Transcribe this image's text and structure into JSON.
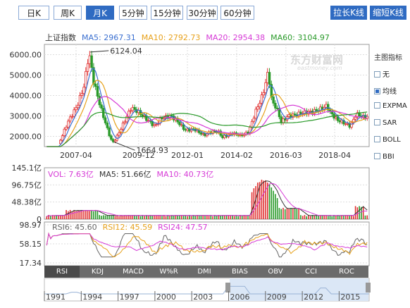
{
  "tabs": [
    {
      "label": "日K",
      "active": false
    },
    {
      "label": "周K",
      "active": false
    },
    {
      "label": "月K",
      "active": true
    },
    {
      "label": "5分钟",
      "active": false
    },
    {
      "label": "15分钟",
      "active": false
    },
    {
      "label": "30分钟",
      "active": false
    },
    {
      "label": "60分钟",
      "active": false
    }
  ],
  "buttons": {
    "stretch": "拉长K线",
    "shrink": "缩短K线"
  },
  "price_legend": {
    "name": "上证指数",
    "ma5": "MA5: 2967.31",
    "ma10": "MA10: 2792.73",
    "ma20": "MA20: 2954.38",
    "ma60": "MA60: 3104.97"
  },
  "volume_legend": {
    "vol": "VOL: 7.63亿",
    "ma5": "MA5: 51.66亿",
    "ma10": "MA10: 40.73亿"
  },
  "rsi_legend": {
    "rsi6": "RSI6: 45.60",
    "rsi12": "RSI12: 45.59",
    "rsi24": "RSI24: 47.57"
  },
  "indicator_panel": {
    "title": "主图指标",
    "options": [
      {
        "label": "无",
        "checked": false
      },
      {
        "label": "均线",
        "checked": true
      },
      {
        "label": "EXPMA",
        "checked": false
      },
      {
        "label": "SAR",
        "checked": false
      },
      {
        "label": "BOLL",
        "checked": false
      },
      {
        "label": "BBI",
        "checked": false
      }
    ]
  },
  "indicator_tabs": [
    "RSI",
    "KDJ",
    "MACD",
    "W%R",
    "DMI",
    "BIAS",
    "OBV",
    "CCI",
    "ROC"
  ],
  "active_indicator": "RSI",
  "navigator_years": [
    "1991",
    "1994",
    "1997",
    "2000",
    "2003",
    "2006",
    "2009",
    "2012",
    "2015"
  ],
  "watermark": {
    "cn": "东方财富网",
    "en": "eastmoney.com"
  },
  "colors": {
    "up": "#e03030",
    "down": "#2a9a2a",
    "ma5": "#3a6fd0",
    "ma10": "#e7a11b",
    "ma20": "#d63ad6",
    "ma60": "#2a9a2a",
    "accent": "#2f6bc2"
  },
  "chart_data": [
    {
      "type": "candlestick",
      "title": "上证指数",
      "x_ticks": [
        "2007-04",
        "2009-12",
        "2012-01",
        "2014-02",
        "2016-03",
        "2018-04"
      ],
      "y_ticks": [
        2000,
        3000,
        4000,
        5000,
        6000
      ],
      "ylim": [
        1500,
        6500
      ],
      "annotations": [
        {
          "label": "6124.04",
          "x": "2007-10",
          "y": 6124.04
        },
        {
          "label": "1664.93",
          "x": "2008-10",
          "y": 1664.93
        }
      ],
      "grid": true,
      "series": [
        {
          "name": "MA5",
          "value": 2967.31
        },
        {
          "name": "MA10",
          "value": 2792.73
        },
        {
          "name": "MA20",
          "value": 2954.38
        },
        {
          "name": "MA60",
          "value": 3104.97
        }
      ],
      "close_path": [
        [
          2006.0,
          1300
        ],
        [
          2006.5,
          1600
        ],
        [
          2006.9,
          2700
        ],
        [
          2007.3,
          3500
        ],
        [
          2007.6,
          4500
        ],
        [
          2007.8,
          6124.04
        ],
        [
          2008.0,
          4700
        ],
        [
          2008.3,
          3400
        ],
        [
          2008.6,
          2300
        ],
        [
          2008.8,
          1664.93
        ],
        [
          2009.0,
          2000
        ],
        [
          2009.3,
          2700
        ],
        [
          2009.6,
          3400
        ],
        [
          2009.9,
          3200
        ],
        [
          2010.3,
          2800
        ],
        [
          2010.6,
          2500
        ],
        [
          2010.9,
          2900
        ],
        [
          2011.3,
          3000
        ],
        [
          2011.6,
          2700
        ],
        [
          2011.9,
          2300
        ],
        [
          2012.3,
          2350
        ],
        [
          2012.7,
          2050
        ],
        [
          2012.95,
          2200
        ],
        [
          2013.3,
          2250
        ],
        [
          2013.5,
          1950
        ],
        [
          2013.9,
          2150
        ],
        [
          2014.3,
          2050
        ],
        [
          2014.6,
          2200
        ],
        [
          2014.9,
          3200
        ],
        [
          2015.2,
          4000
        ],
        [
          2015.45,
          5178
        ],
        [
          2015.6,
          3700
        ],
        [
          2015.8,
          3400
        ],
        [
          2016.0,
          2700
        ],
        [
          2016.3,
          3000
        ],
        [
          2016.6,
          3050
        ],
        [
          2016.9,
          3150
        ],
        [
          2017.3,
          3200
        ],
        [
          2017.6,
          3300
        ],
        [
          2017.95,
          3500
        ],
        [
          2018.1,
          3150
        ],
        [
          2018.4,
          2800
        ],
        [
          2018.7,
          2650
        ],
        [
          2018.95,
          2500
        ],
        [
          2019.2,
          3100
        ],
        [
          2019.5,
          2950
        ],
        [
          2019.7,
          2967.31
        ]
      ]
    },
    {
      "type": "bar",
      "title": "VOL",
      "y_ticks": [
        "0",
        "48.38亿",
        "96.75亿",
        "145.1亿"
      ],
      "ylim": [
        0,
        145.1
      ],
      "series": [
        {
          "name": "VOL",
          "value": 7.63
        },
        {
          "name": "MA5",
          "value": 51.66
        },
        {
          "name": "MA10",
          "value": 40.73
        }
      ]
    },
    {
      "type": "line",
      "title": "RSI",
      "y_ticks": [
        "17.34",
        "58.15",
        "98.97"
      ],
      "ylim": [
        17.34,
        98.97
      ],
      "series": [
        {
          "name": "RSI6",
          "value": 45.6
        },
        {
          "name": "RSI12",
          "value": 45.59
        },
        {
          "name": "RSI24",
          "value": 47.57
        }
      ]
    }
  ]
}
